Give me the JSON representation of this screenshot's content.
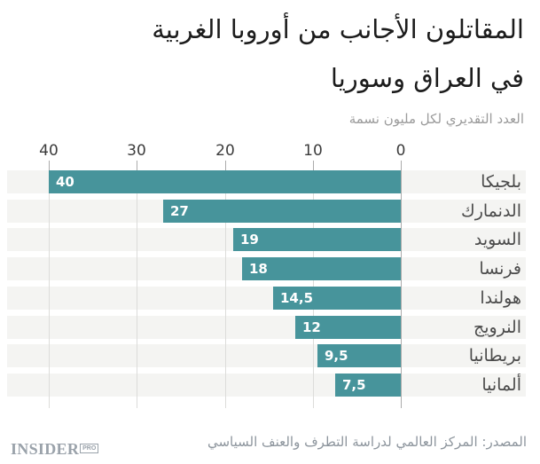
{
  "title": {
    "line1": "المقاتلون الأجانب من أوروبا الغربية",
    "line2": "في العراق وسوريا"
  },
  "subtitle": "العدد التقديري لكل مليون نسمة",
  "source": "المصدر: المركز العالمي لدراسة التطرف والعنف السياسي",
  "logo": {
    "name": "INSIDER",
    "badge": "PRO"
  },
  "colors": {
    "bar": "#47949B",
    "row_background": "#f4f4f2",
    "gridline": "#dcdcda",
    "zero_line": "#ababab",
    "title_text": "#1c1c1c",
    "subtitle_text": "#9b9b9b",
    "axis_text": "#3c3c3c",
    "category_text": "#4b4b4b",
    "value_text": "#ffffff",
    "source_text": "#8d959d",
    "logo_gray": "#9aa2aa"
  },
  "chart_data": {
    "type": "bar",
    "orientation": "horizontal-rtl",
    "title": "المقاتلون الأجانب من أوروبا الغربية في العراق وسوريا",
    "subtitle": "العدد التقديري لكل مليون نسمة",
    "categories": [
      "بلجيكا",
      "الدنمارك",
      "السويد",
      "فرنسا",
      "هولندا",
      "النرويج",
      "بريطانيا",
      "ألمانيا"
    ],
    "values": [
      40,
      27,
      19,
      18,
      14.5,
      12,
      9.5,
      7.5
    ],
    "value_labels": [
      "40",
      "27",
      "19",
      "18",
      "14,5",
      "12",
      "9,5",
      "7,5"
    ],
    "xlim": [
      0,
      40
    ],
    "xticks": [
      40,
      30,
      20,
      10,
      0
    ],
    "xtick_labels": [
      "40",
      "30",
      "20",
      "10",
      "0"
    ],
    "grid": "vertical",
    "legend": "none",
    "value_label_position": "inside-bar-end",
    "source": "المصدر: المركز العالمي لدراسة التطرف والعنف السياسي"
  }
}
